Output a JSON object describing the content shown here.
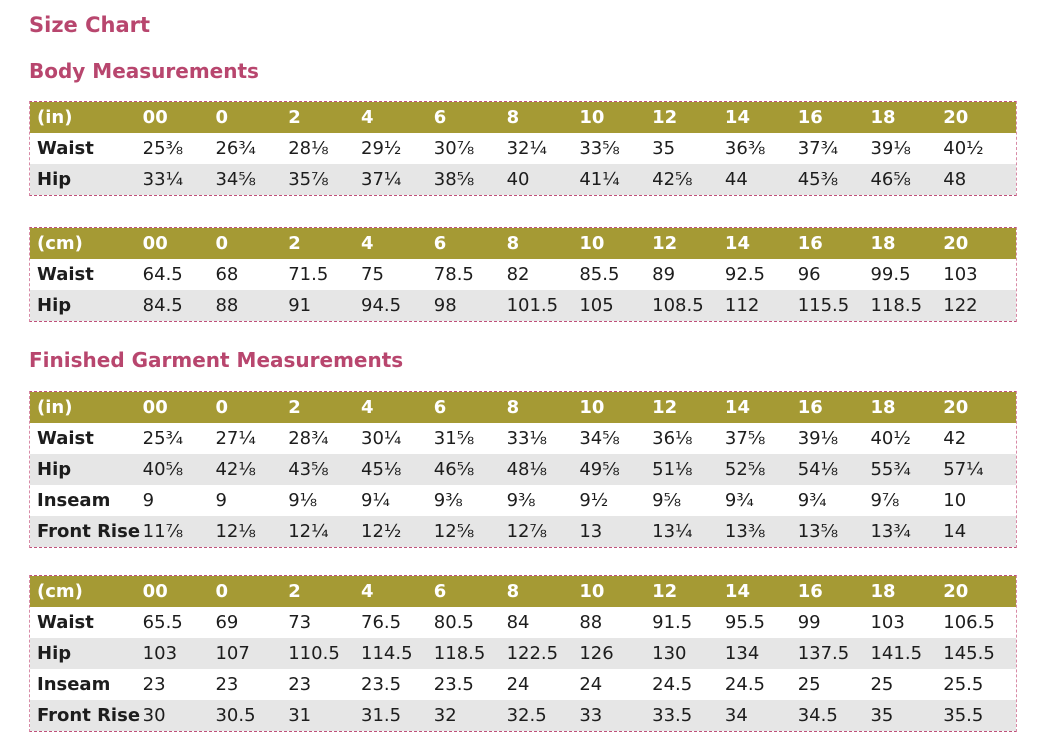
{
  "title": "Size Chart",
  "sections": [
    {
      "heading": "Body Measurements",
      "tables": [
        {
          "unit": "(in)",
          "sizes": [
            "00",
            "0",
            "2",
            "4",
            "6",
            "8",
            "10",
            "12",
            "14",
            "16",
            "18",
            "20"
          ],
          "rows": [
            {
              "label": "Waist",
              "values": [
                "25⅜",
                "26¾",
                "28⅛",
                "29½",
                "30⅞",
                "32¼",
                "33⅝",
                "35",
                "36⅜",
                "37¾",
                "39⅛",
                "40½"
              ]
            },
            {
              "label": "Hip",
              "values": [
                "33¼",
                "34⅝",
                "35⅞",
                "37¼",
                "38⅝",
                "40",
                "41¼",
                "42⅝",
                "44",
                "45⅜",
                "46⅝",
                "48"
              ]
            }
          ]
        },
        {
          "unit": "(cm)",
          "sizes": [
            "00",
            "0",
            "2",
            "4",
            "6",
            "8",
            "10",
            "12",
            "14",
            "16",
            "18",
            "20"
          ],
          "rows": [
            {
              "label": "Waist",
              "values": [
                "64.5",
                "68",
                "71.5",
                "75",
                "78.5",
                "82",
                "85.5",
                "89",
                "92.5",
                "96",
                "99.5",
                "103"
              ]
            },
            {
              "label": "Hip",
              "values": [
                "84.5",
                "88",
                "91",
                "94.5",
                "98",
                "101.5",
                "105",
                "108.5",
                "112",
                "115.5",
                "118.5",
                "122"
              ]
            }
          ]
        }
      ]
    },
    {
      "heading": "Finished Garment Measurements",
      "tables": [
        {
          "unit": "(in)",
          "sizes": [
            "00",
            "0",
            "2",
            "4",
            "6",
            "8",
            "10",
            "12",
            "14",
            "16",
            "18",
            "20"
          ],
          "rows": [
            {
              "label": "Waist",
              "values": [
                "25¾",
                "27¼",
                "28¾",
                "30¼",
                "31⅝",
                "33⅛",
                "34⅝",
                "36⅛",
                "37⅝",
                "39⅛",
                "40½",
                "42"
              ]
            },
            {
              "label": "Hip",
              "values": [
                "40⅝",
                "42⅛",
                "43⅝",
                "45⅛",
                "46⅝",
                "48⅛",
                "49⅝",
                "51⅛",
                "52⅝",
                "54⅛",
                "55¾",
                "57¼"
              ]
            },
            {
              "label": "Inseam",
              "values": [
                "9",
                "9",
                "9⅛",
                "9¼",
                "9⅜",
                "9⅜",
                "9½",
                "9⅝",
                "9¾",
                "9¾",
                "9⅞",
                "10"
              ]
            },
            {
              "label": "Front Rise",
              "values": [
                "11⅞",
                "12⅛",
                "12¼",
                "12½",
                "12⅝",
                "12⅞",
                "13",
                "13¼",
                "13⅜",
                "13⅝",
                "13¾",
                "14"
              ]
            }
          ]
        },
        {
          "unit": "(cm)",
          "sizes": [
            "00",
            "0",
            "2",
            "4",
            "6",
            "8",
            "10",
            "12",
            "14",
            "16",
            "18",
            "20"
          ],
          "rows": [
            {
              "label": "Waist",
              "values": [
                "65.5",
                "69",
                "73",
                "76.5",
                "80.5",
                "84",
                "88",
                "91.5",
                "95.5",
                "99",
                "103",
                "106.5"
              ]
            },
            {
              "label": "Hip",
              "values": [
                "103",
                "107",
                "110.5",
                "114.5",
                "118.5",
                "122.5",
                "126",
                "130",
                "134",
                "137.5",
                "141.5",
                "145.5"
              ]
            },
            {
              "label": "Inseam",
              "values": [
                "23",
                "23",
                "23",
                "23.5",
                "23.5",
                "24",
                "24",
                "24.5",
                "24.5",
                "25",
                "25",
                "25.5"
              ]
            },
            {
              "label": "Front Rise",
              "values": [
                "30",
                "30.5",
                "31",
                "31.5",
                "32",
                "32.5",
                "33",
                "33.5",
                "34",
                "34.5",
                "35",
                "35.5"
              ]
            }
          ]
        }
      ]
    }
  ]
}
